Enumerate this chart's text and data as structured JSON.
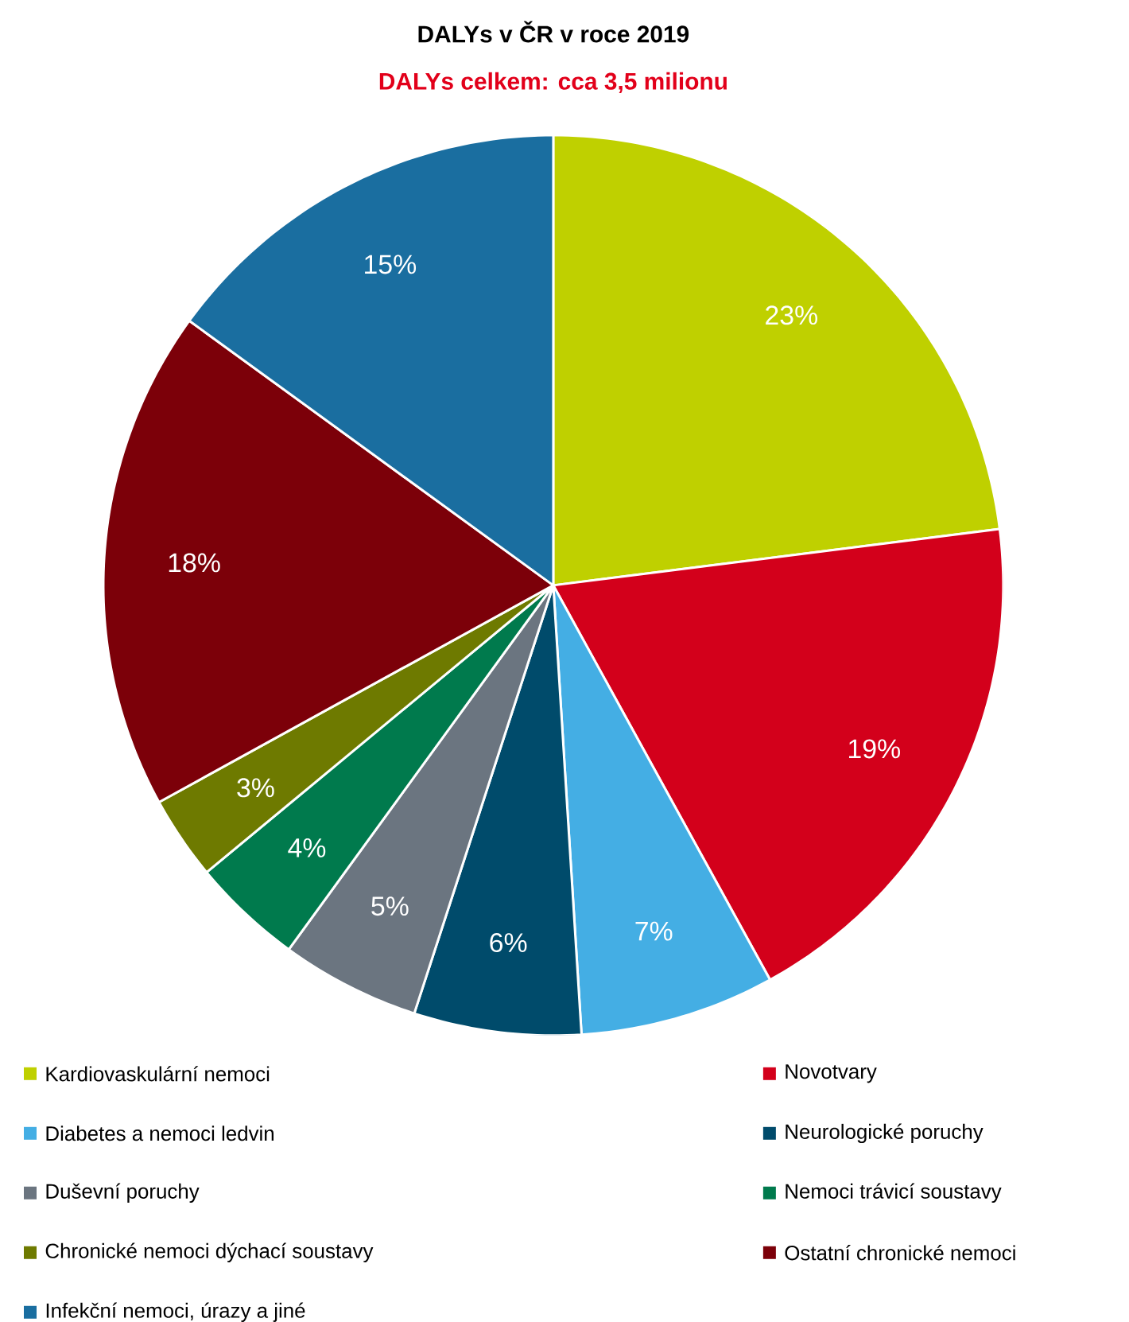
{
  "chart_data": {
    "type": "pie",
    "title": "DALYs v ČR v roce 2019",
    "subtitle": "DALYs celkem: cca 3,5 milionu",
    "categories": [
      "Kardiovaskulární nemoci",
      "Novotvary",
      "Diabetes a nemoci ledvin",
      "Neurologické poruchy",
      "Duševní poruchy",
      "Nemoci trávicí soustavy",
      "Chronické nemoci dýchací soustavy",
      "Ostatní chronické nemoci",
      "Infekční nemoci, úrazy a jiné"
    ],
    "values": [
      23,
      19,
      7,
      6,
      5,
      4,
      3,
      18,
      15
    ],
    "value_labels": [
      "23%",
      "19%",
      "7%",
      "6%",
      "5%",
      "4%",
      "3%",
      "18%",
      "15%"
    ],
    "colors": [
      "#bfd000",
      "#d3001b",
      "#44aee4",
      "#004b6b",
      "#6b7580",
      "#007a4d",
      "#6e7a00",
      "#7c0009",
      "#1a6ea0"
    ],
    "legend": "bottom"
  }
}
